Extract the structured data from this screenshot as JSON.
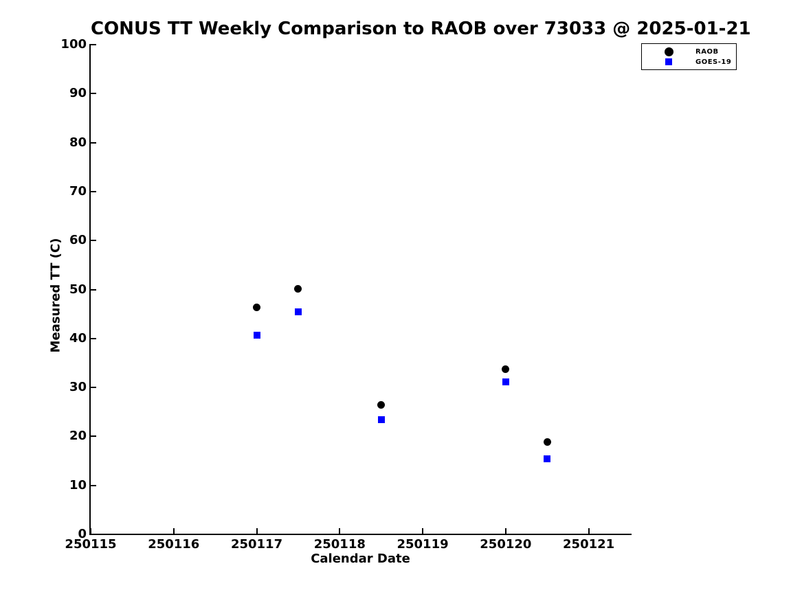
{
  "chart_data": {
    "type": "scatter",
    "title": "CONUS TT Weekly Comparison to RAOB over 73033 @ 2025-01-21",
    "xlabel": "Calendar Date",
    "ylabel": "Measured TT (C)",
    "xlim": [
      250115,
      250121.5
    ],
    "ylim": [
      0,
      100
    ],
    "grid": false,
    "background_color": "#ffffff",
    "axis_color": "#000000",
    "xticks": [
      {
        "value": 250115,
        "label": "250115"
      },
      {
        "value": 250116,
        "label": "250116"
      },
      {
        "value": 250117,
        "label": "250117"
      },
      {
        "value": 250118,
        "label": "250118"
      },
      {
        "value": 250119,
        "label": "250119"
      },
      {
        "value": 250120,
        "label": "250120"
      },
      {
        "value": 250121,
        "label": "250121"
      }
    ],
    "yticks": [
      {
        "value": 0,
        "label": "0"
      },
      {
        "value": 10,
        "label": "10"
      },
      {
        "value": 20,
        "label": "20"
      },
      {
        "value": 30,
        "label": "30"
      },
      {
        "value": 40,
        "label": "40"
      },
      {
        "value": 50,
        "label": "50"
      },
      {
        "value": 60,
        "label": "60"
      },
      {
        "value": 70,
        "label": "70"
      },
      {
        "value": 80,
        "label": "80"
      },
      {
        "value": 90,
        "label": "90"
      },
      {
        "value": 100,
        "label": "100"
      }
    ],
    "x": [
      250117.0,
      250117.5,
      250118.5,
      250120.0,
      250120.5
    ],
    "series": [
      {
        "name": "RAOB",
        "marker": "circle",
        "color": "#000000",
        "values": [
          46.3,
          50.1,
          26.4,
          33.8,
          18.9
        ]
      },
      {
        "name": "GOES-19",
        "marker": "square",
        "color": "#0000ff",
        "values": [
          40.7,
          45.4,
          23.4,
          31.1,
          15.4
        ]
      }
    ],
    "legend_position": "top-right"
  }
}
